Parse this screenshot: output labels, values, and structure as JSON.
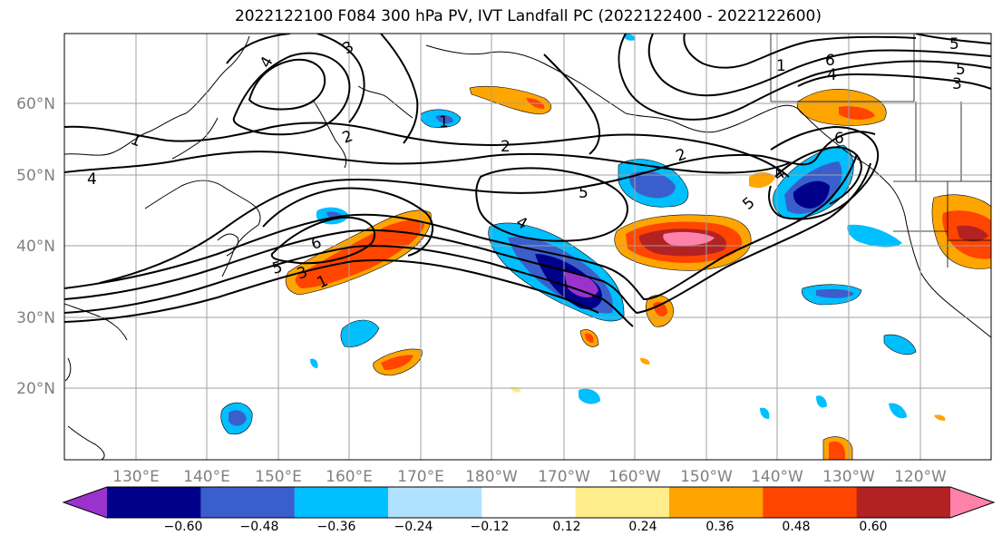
{
  "title": "2022122100 F084 300 hPa PV, IVT Landfall PC (2022122400 - 2022122600)",
  "latitude_labels": [
    "60°N",
    "50°N",
    "40°N",
    "30°N",
    "20°N"
  ],
  "longitude_labels": [
    "130°E",
    "140°E",
    "150°E",
    "160°E",
    "170°E",
    "180°W",
    "170°W",
    "160°W",
    "150°W",
    "140°W",
    "130°W",
    "120°W"
  ],
  "colorbar": {
    "tick_labels": [
      "−0.60",
      "−0.48",
      "−0.36",
      "−0.24",
      "−0.12",
      "0.12",
      "0.24",
      "0.36",
      "0.48",
      "0.60"
    ],
    "colors": [
      "#9a32cd",
      "#00008b",
      "#3a5fcd",
      "#00bfff",
      "#b0e2ff",
      "#ffffff",
      "#ffec8b",
      "#ffa500",
      "#ff4500",
      "#b22222",
      "#ff82ab"
    ]
  },
  "contour_labels": [
    "4",
    "3",
    "1",
    "2",
    "4",
    "6",
    "5",
    "2",
    "1",
    "5",
    "4",
    "6",
    "5",
    "4",
    "1",
    "3",
    "6",
    "5",
    "3",
    "2",
    "4",
    "5",
    "1"
  ]
}
